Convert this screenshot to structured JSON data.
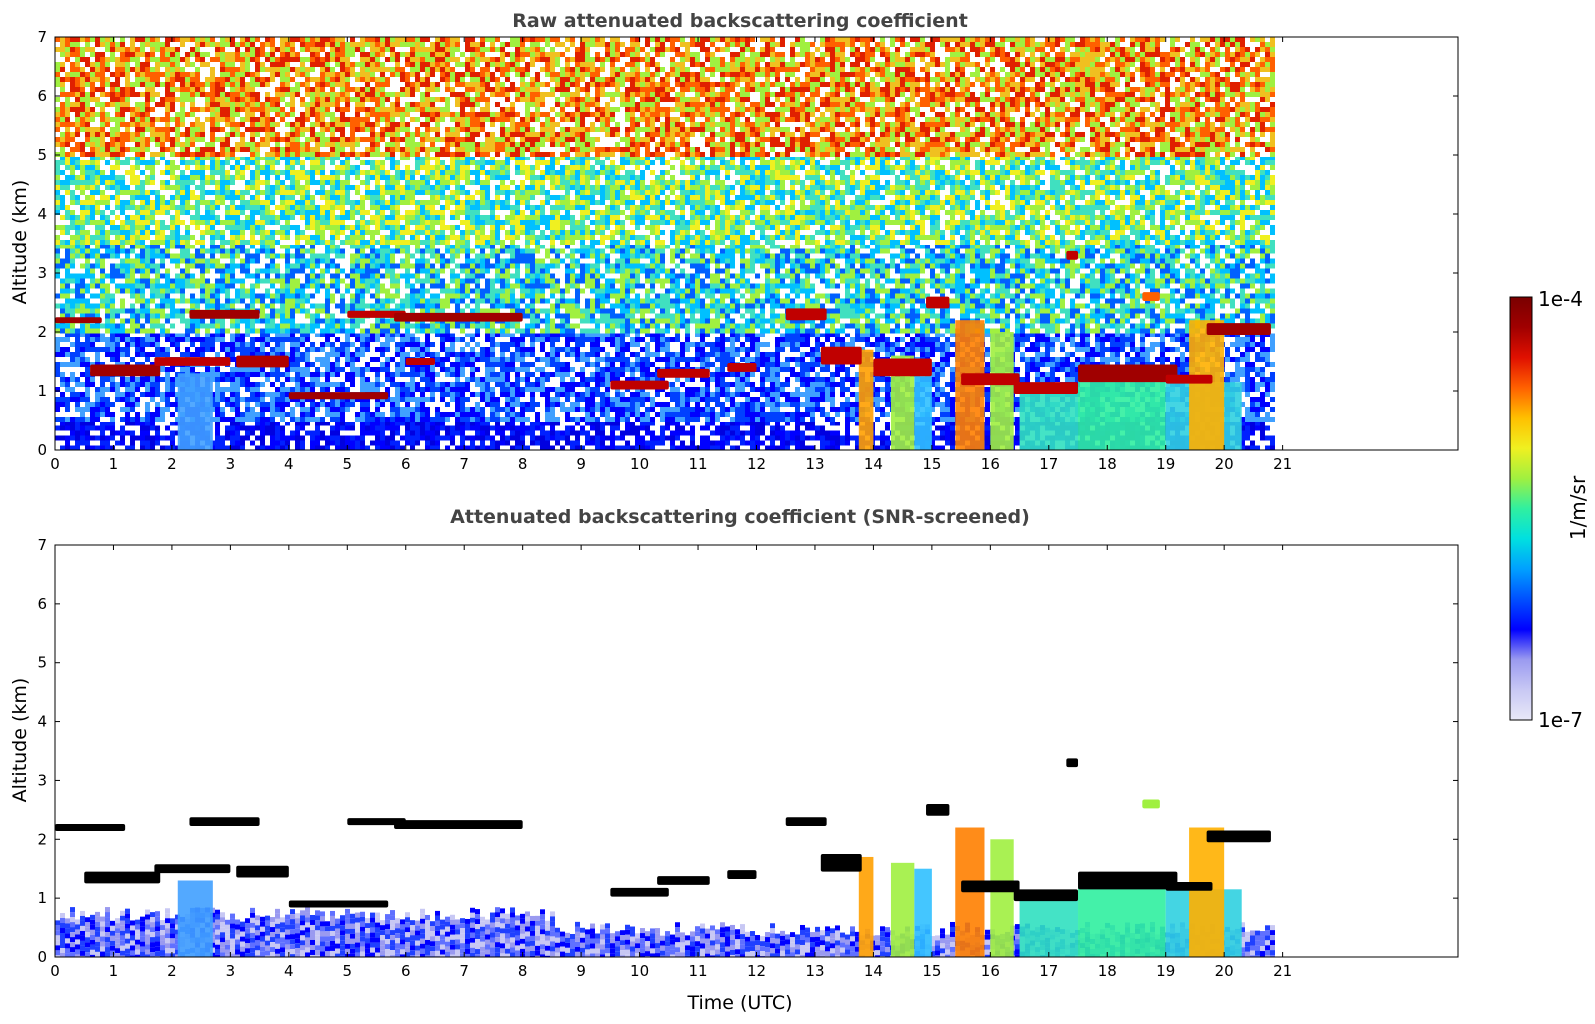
{
  "figure": {
    "colorbar": {
      "min_label": "1e-7",
      "max_label": "1e-4",
      "label": "1/m/sr",
      "colors": [
        "#e8e8f8",
        "#c8c8f4",
        "#9a9af0",
        "#0000ff",
        "#0050ff",
        "#00a0ff",
        "#00e0e0",
        "#30f0a0",
        "#a0f040",
        "#f0f020",
        "#ffc000",
        "#ff6000",
        "#e01000",
        "#a00000",
        "#7a0000"
      ]
    }
  },
  "chart_data": [
    {
      "type": "heatmap",
      "title": "Raw attenuated backscattering coefficient",
      "xlabel": "",
      "ylabel": "Altitude (km)",
      "x_ticks": [
        "0",
        "1",
        "2",
        "3",
        "4",
        "5",
        "6",
        "7",
        "8",
        "9",
        "10",
        "11",
        "12",
        "13",
        "14",
        "15",
        "16",
        "17",
        "18",
        "19",
        "20",
        "21"
      ],
      "y_ticks": [
        "0",
        "1",
        "2",
        "3",
        "4",
        "5",
        "6",
        "7"
      ],
      "xlim": [
        0,
        24
      ],
      "ylim": [
        0,
        7
      ],
      "data_extent_x": [
        0,
        20.8
      ],
      "background": "noise",
      "layers": [
        {
          "t0": 0.0,
          "t1": 0.8,
          "z": 2.2,
          "th": 0.1,
          "c": "#a00000"
        },
        {
          "t0": 0.6,
          "t1": 1.8,
          "z": 1.35,
          "th": 0.2,
          "c": "#a00000"
        },
        {
          "t0": 1.7,
          "t1": 3.0,
          "z": 1.5,
          "th": 0.15,
          "c": "#c00000"
        },
        {
          "t0": 2.3,
          "t1": 3.5,
          "z": 2.3,
          "th": 0.15,
          "c": "#a00000"
        },
        {
          "t0": 3.1,
          "t1": 4.0,
          "z": 1.5,
          "th": 0.2,
          "c": "#b00000"
        },
        {
          "t0": 4.0,
          "t1": 5.7,
          "z": 0.92,
          "th": 0.12,
          "c": "#a00000"
        },
        {
          "t0": 5.0,
          "t1": 6.0,
          "z": 2.3,
          "th": 0.12,
          "c": "#c00000"
        },
        {
          "t0": 5.8,
          "t1": 8.0,
          "z": 2.25,
          "th": 0.15,
          "c": "#a00000"
        },
        {
          "t0": 6.0,
          "t1": 6.5,
          "z": 1.5,
          "th": 0.12,
          "c": "#c00000"
        },
        {
          "t0": 9.5,
          "t1": 10.5,
          "z": 1.1,
          "th": 0.15,
          "c": "#c00000"
        },
        {
          "t0": 10.3,
          "t1": 11.2,
          "z": 1.3,
          "th": 0.15,
          "c": "#c00000"
        },
        {
          "t0": 11.5,
          "t1": 12.0,
          "z": 1.4,
          "th": 0.15,
          "c": "#c00000"
        },
        {
          "t0": 12.5,
          "t1": 13.2,
          "z": 2.3,
          "th": 0.2,
          "c": "#c00000"
        },
        {
          "t0": 13.1,
          "t1": 13.8,
          "z": 1.6,
          "th": 0.3,
          "c": "#c00000"
        },
        {
          "t0": 14.0,
          "t1": 15.0,
          "z": 1.4,
          "th": 0.3,
          "c": "#c00000"
        },
        {
          "t0": 14.9,
          "t1": 15.3,
          "z": 2.5,
          "th": 0.2,
          "c": "#c00000"
        },
        {
          "t0": 15.5,
          "t1": 16.5,
          "z": 1.2,
          "th": 0.2,
          "c": "#c00000"
        },
        {
          "t0": 16.4,
          "t1": 17.5,
          "z": 1.05,
          "th": 0.2,
          "c": "#c00000"
        },
        {
          "t0": 17.3,
          "t1": 17.5,
          "z": 3.3,
          "th": 0.15,
          "c": "#c00000"
        },
        {
          "t0": 17.5,
          "t1": 19.2,
          "z": 1.3,
          "th": 0.3,
          "c": "#a00000"
        },
        {
          "t0": 18.6,
          "t1": 18.9,
          "z": 2.6,
          "th": 0.15,
          "c": "#ff6000"
        },
        {
          "t0": 19.0,
          "t1": 19.8,
          "z": 1.2,
          "th": 0.15,
          "c": "#c00000"
        },
        {
          "t0": 19.7,
          "t1": 20.8,
          "z": 2.05,
          "th": 0.2,
          "c": "#a00000"
        }
      ],
      "columns": [
        {
          "t0": 2.1,
          "t1": 2.7,
          "ztop": 1.3,
          "c": "#40a0ff"
        },
        {
          "t0": 13.75,
          "t1": 14.0,
          "ztop": 1.7,
          "c": "#ffa000"
        },
        {
          "t0": 14.3,
          "t1": 14.7,
          "ztop": 1.6,
          "c": "#a0f040"
        },
        {
          "t0": 14.7,
          "t1": 15.0,
          "ztop": 1.5,
          "c": "#30c0ff"
        },
        {
          "t0": 15.4,
          "t1": 15.9,
          "ztop": 2.2,
          "c": "#ff8000"
        },
        {
          "t0": 16.0,
          "t1": 16.4,
          "ztop": 2.0,
          "c": "#a0f040"
        },
        {
          "t0": 16.5,
          "t1": 17.5,
          "ztop": 1.1,
          "c": "#30e0c0"
        },
        {
          "t0": 17.5,
          "t1": 19.0,
          "ztop": 1.25,
          "c": "#30f0a0"
        },
        {
          "t0": 19.0,
          "t1": 20.3,
          "ztop": 1.15,
          "c": "#30d0e0"
        },
        {
          "t0": 19.4,
          "t1": 20.0,
          "ztop": 2.2,
          "c": "#ffb000"
        }
      ]
    },
    {
      "type": "heatmap",
      "title": "Attenuated backscattering coefficient (SNR-screened)",
      "xlabel": "Time (UTC)",
      "ylabel": "Altitude (km)",
      "x_ticks": [
        "0",
        "1",
        "2",
        "3",
        "4",
        "5",
        "6",
        "7",
        "8",
        "9",
        "10",
        "11",
        "12",
        "13",
        "14",
        "15",
        "16",
        "17",
        "18",
        "19",
        "20",
        "21"
      ],
      "y_ticks": [
        "0",
        "1",
        "2",
        "3",
        "4",
        "5",
        "6",
        "7"
      ],
      "xlim": [
        0,
        24
      ],
      "ylim": [
        0,
        7
      ],
      "data_extent_x": [
        0,
        20.8
      ],
      "background": "screened",
      "layers": [
        {
          "t0": 0.0,
          "t1": 1.2,
          "z": 2.2,
          "th": 0.12,
          "c": "#000000"
        },
        {
          "t0": 0.5,
          "t1": 1.8,
          "z": 1.35,
          "th": 0.2,
          "c": "#000000"
        },
        {
          "t0": 1.7,
          "t1": 3.0,
          "z": 1.5,
          "th": 0.15,
          "c": "#000000"
        },
        {
          "t0": 2.3,
          "t1": 3.5,
          "z": 2.3,
          "th": 0.15,
          "c": "#000000"
        },
        {
          "t0": 3.1,
          "t1": 4.0,
          "z": 1.45,
          "th": 0.2,
          "c": "#000000"
        },
        {
          "t0": 4.0,
          "t1": 5.7,
          "z": 0.9,
          "th": 0.12,
          "c": "#000000"
        },
        {
          "t0": 5.0,
          "t1": 6.0,
          "z": 2.3,
          "th": 0.12,
          "c": "#000000"
        },
        {
          "t0": 5.8,
          "t1": 8.0,
          "z": 2.25,
          "th": 0.15,
          "c": "#000000"
        },
        {
          "t0": 9.5,
          "t1": 10.5,
          "z": 1.1,
          "th": 0.15,
          "c": "#000000"
        },
        {
          "t0": 10.3,
          "t1": 11.2,
          "z": 1.3,
          "th": 0.15,
          "c": "#000000"
        },
        {
          "t0": 11.5,
          "t1": 12.0,
          "z": 1.4,
          "th": 0.15,
          "c": "#000000"
        },
        {
          "t0": 12.5,
          "t1": 13.2,
          "z": 2.3,
          "th": 0.15,
          "c": "#000000"
        },
        {
          "t0": 13.1,
          "t1": 13.8,
          "z": 1.6,
          "th": 0.3,
          "c": "#000000"
        },
        {
          "t0": 14.9,
          "t1": 15.3,
          "z": 2.5,
          "th": 0.2,
          "c": "#000000"
        },
        {
          "t0": 15.5,
          "t1": 16.5,
          "z": 1.2,
          "th": 0.2,
          "c": "#000000"
        },
        {
          "t0": 16.4,
          "t1": 17.5,
          "z": 1.05,
          "th": 0.2,
          "c": "#000000"
        },
        {
          "t0": 17.3,
          "t1": 17.5,
          "z": 3.3,
          "th": 0.15,
          "c": "#000000"
        },
        {
          "t0": 17.5,
          "t1": 19.2,
          "z": 1.3,
          "th": 0.3,
          "c": "#000000"
        },
        {
          "t0": 18.6,
          "t1": 18.9,
          "z": 2.6,
          "th": 0.15,
          "c": "#a0f040"
        },
        {
          "t0": 19.0,
          "t1": 19.8,
          "z": 1.2,
          "th": 0.15,
          "c": "#000000"
        },
        {
          "t0": 19.7,
          "t1": 20.8,
          "z": 2.05,
          "th": 0.2,
          "c": "#000000"
        }
      ],
      "columns": [
        {
          "t0": 2.1,
          "t1": 2.7,
          "ztop": 1.3,
          "c": "#40a0ff"
        },
        {
          "t0": 13.75,
          "t1": 14.0,
          "ztop": 1.7,
          "c": "#ffa000"
        },
        {
          "t0": 14.3,
          "t1": 14.7,
          "ztop": 1.6,
          "c": "#a0f040"
        },
        {
          "t0": 14.7,
          "t1": 15.0,
          "ztop": 1.5,
          "c": "#30c0ff"
        },
        {
          "t0": 15.4,
          "t1": 15.9,
          "ztop": 2.2,
          "c": "#ff8000"
        },
        {
          "t0": 16.0,
          "t1": 16.4,
          "ztop": 2.0,
          "c": "#a0f040"
        },
        {
          "t0": 16.5,
          "t1": 17.5,
          "ztop": 1.1,
          "c": "#30e0c0"
        },
        {
          "t0": 17.5,
          "t1": 19.0,
          "ztop": 1.25,
          "c": "#30f0a0"
        },
        {
          "t0": 19.0,
          "t1": 20.3,
          "ztop": 1.15,
          "c": "#30d0e0"
        },
        {
          "t0": 19.4,
          "t1": 20.0,
          "ztop": 2.2,
          "c": "#ffb000"
        }
      ]
    }
  ]
}
